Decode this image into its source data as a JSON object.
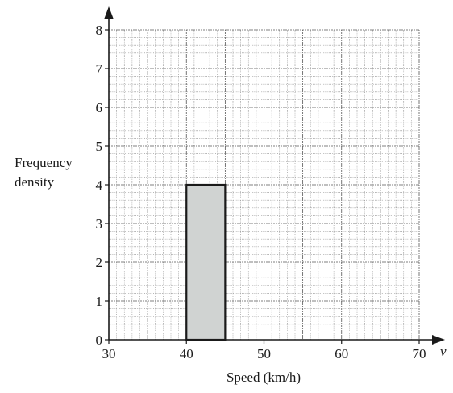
{
  "chart_data": {
    "type": "histogram",
    "title": "",
    "xlabel": "Speed (km/h)",
    "x_variable": "v",
    "ylabel_line1": "Frequency",
    "ylabel_line2": "density",
    "xlim": [
      30,
      70
    ],
    "ylim": [
      0,
      8
    ],
    "xticks": [
      30,
      40,
      50,
      60,
      70
    ],
    "yticks": [
      0,
      1,
      2,
      3,
      4,
      5,
      6,
      7,
      8
    ],
    "grid": true,
    "bars": [
      {
        "x_start": 40,
        "x_end": 45,
        "frequency_density": 4
      }
    ],
    "colors": {
      "bar_fill": "#d0d3d2",
      "bar_stroke": "#1a1a1a",
      "grid_minor": "#8a8a8a",
      "grid_major": "#555555",
      "axis": "#1a1a1a"
    }
  }
}
